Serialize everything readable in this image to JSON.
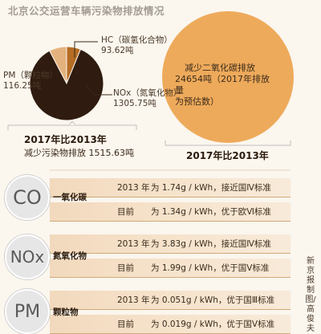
{
  "title": "北京公交运营车辆污染物排放情况",
  "colors": {
    "pie_hc": "#b56c23",
    "pie_pm": "#e3b27e",
    "pie_nox": "#2f1b0f",
    "big_circle": "#eeaa5b",
    "accent_line": "#3a2a1a"
  },
  "chart_data": [
    {
      "type": "pie",
      "title": "",
      "slices": [
        {
          "label": "HC（碳氢化合物）",
          "value": 93.62,
          "unit": "吨",
          "value_text": "93.62吨"
        },
        {
          "label": "PM（颗粒物）",
          "value": 116.25,
          "unit": "吨",
          "value_text": "116.25吨"
        },
        {
          "label": "NOx（氮氧化物）",
          "value": 1305.75,
          "unit": "吨",
          "value_text": "1305.75吨"
        }
      ],
      "caption": "2017年比2013年",
      "total_text": "减少污染物排放 1515.63吨"
    },
    {
      "type": "pie",
      "title": "",
      "slices": [
        {
          "label": "减少二氧化碳排放",
          "value": 24654,
          "unit": "吨",
          "value_text": "24654吨（2017年排放量为预估数）"
        }
      ],
      "circle_text": [
        "减少二氧化碳排放",
        "24654吨（2017年排放量",
        "为预估数）"
      ],
      "caption": "2017年比2013年"
    }
  ],
  "table": [
    {
      "badge": "CO",
      "name": "一氧化碳",
      "rows": [
        {
          "period": "2013 年",
          "text": "为 1.74g / kWh，接近国Ⅳ标准"
        },
        {
          "period": "目前",
          "text": "为 1.34g / kWh，优于欧Ⅵ标准"
        }
      ]
    },
    {
      "badge": "NOx",
      "name": "氮氧化物",
      "rows": [
        {
          "period": "2013 年",
          "text": "为 3.83g / kWh，接近国Ⅳ标准"
        },
        {
          "period": "目前",
          "text": "为 1.99g / kWh，优于国Ⅴ标准"
        }
      ]
    },
    {
      "badge": "PM",
      "name": "颗粒物",
      "rows": [
        {
          "period": "2013 年",
          "text": "为 0.051g / kWh，优于国Ⅲ标准"
        },
        {
          "period": "目前",
          "text": "为 0.019g / kWh，优于国Ⅴ标准"
        }
      ]
    }
  ],
  "credit": "新京报制图/高俊夫"
}
